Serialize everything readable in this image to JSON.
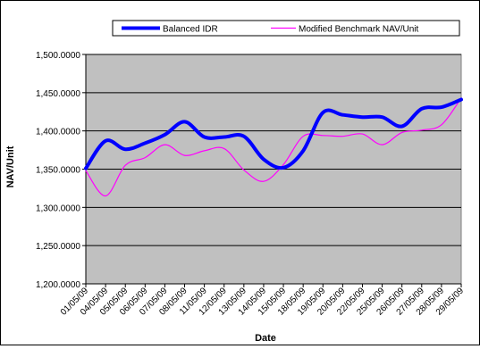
{
  "chart_data": {
    "type": "line",
    "title": "",
    "xlabel": "Date",
    "ylabel": "NAV/Unit",
    "ylim": [
      1200,
      1500
    ],
    "yticks": [
      1200,
      1250,
      1300,
      1350,
      1400,
      1450,
      1500
    ],
    "ytick_labels": [
      "1,200.0000",
      "1,250.0000",
      "1,300.0000",
      "1,350.0000",
      "1,400.0000",
      "1,450.0000",
      "1,500.0000"
    ],
    "categories": [
      "01/05/09",
      "04/05/09",
      "05/05/09",
      "06/05/09",
      "07/05/09",
      "08/05/09",
      "11/05/09",
      "12/05/09",
      "13/05/09",
      "14/05/09",
      "15/05/09",
      "18/05/09",
      "19/05/09",
      "20/05/09",
      "22/05/09",
      "25/05/09",
      "26/05/09",
      "27/05/09",
      "28/05/09",
      "29/05/09"
    ],
    "grid": "horizontal",
    "plot_background": "#c0c0c0",
    "legend_position": "top",
    "series": [
      {
        "name": "Balanced IDR",
        "color": "#0000ff",
        "width": "thick",
        "values": [
          1351,
          1387,
          1376,
          1384,
          1395,
          1412,
          1392,
          1392,
          1393,
          1363,
          1352,
          1374,
          1424,
          1421,
          1418,
          1418,
          1406,
          1429,
          1431,
          1441
        ]
      },
      {
        "name": "Modified Benchmark NAV/Unit",
        "color": "#ff00ff",
        "width": "thin",
        "values": [
          1348,
          1315,
          1355,
          1365,
          1382,
          1368,
          1374,
          1377,
          1349,
          1334,
          1356,
          1393,
          1394,
          1393,
          1396,
          1382,
          1398,
          1401,
          1408,
          1443
        ]
      }
    ]
  }
}
